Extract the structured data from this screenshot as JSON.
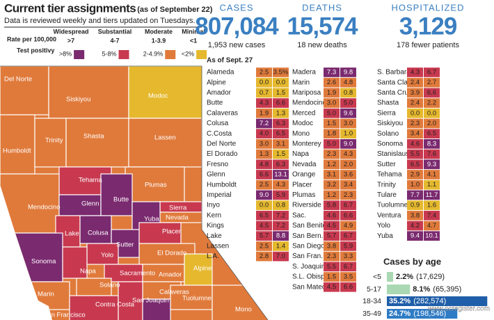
{
  "header": {
    "title": "Current tier assignments",
    "title_note": "(as of September 22)",
    "subtitle": "Data is reviewed weekly and tiers updated on Tuesdays.",
    "row_labels": [
      "Rate per 100,000",
      "Test positivy"
    ],
    "tiers": [
      {
        "name": "Widespread",
        "rate": ">7",
        "positivity": ">8%",
        "color": "#7a2a6f"
      },
      {
        "name": "Substantial",
        "rate": "4-7",
        "positivity": "5-8%",
        "color": "#c8394f"
      },
      {
        "name": "Moderate",
        "rate": "1-3.9",
        "positivity": "2-4.9%",
        "color": "#e07a3b"
      },
      {
        "name": "Minimal",
        "rate": "<1",
        "positivity": "<2%",
        "color": "#e5b82e"
      }
    ]
  },
  "stats": [
    {
      "label": "CASES",
      "value": "807,084",
      "note": "1,953 new cases"
    },
    {
      "label": "DEATHS",
      "value": "15,574",
      "note": "18 new deaths"
    },
    {
      "label": "HOSPITALIZED",
      "value": "3,129",
      "note": "178 fewer patients"
    }
  ],
  "table": {
    "title": "As of Sept. 27",
    "columns": [
      [
        [
          "Alameda",
          "2.5",
          "3.5%",
          "#e07a3b",
          "#e07a3b"
        ],
        [
          "Alpine",
          "0.0",
          "0.0",
          "#e5b82e",
          "#e5b82e"
        ],
        [
          "Amador",
          "0.7",
          "1.5",
          "#e5b82e",
          "#e5b82e"
        ],
        [
          "Butte",
          "4.3",
          "6.6",
          "#c8394f",
          "#c8394f"
        ],
        [
          "Calaveras",
          "1.9",
          "1.3",
          "#e07a3b",
          "#e5b82e"
        ],
        [
          "Colusa",
          "7.2",
          "6.3",
          "#7a2a6f",
          "#c8394f"
        ],
        [
          "C.Costa",
          "4.0",
          "6.5",
          "#c8394f",
          "#c8394f"
        ],
        [
          "Del Norte",
          "3.0",
          "3.1",
          "#e07a3b",
          "#e07a3b"
        ],
        [
          "El Dorado",
          "1.3",
          "1.5",
          "#e07a3b",
          "#e5b82e"
        ],
        [
          "Fresno",
          "4.8",
          "6.3",
          "#c8394f",
          "#c8394f"
        ],
        [
          "Glenn",
          "6.6",
          "13.1",
          "#c8394f",
          "#7a2a6f"
        ],
        [
          "Humboldt",
          "2.5",
          "4.3",
          "#e07a3b",
          "#e07a3b"
        ],
        [
          "Imperial",
          "9.0",
          "5.9",
          "#7a2a6f",
          "#c8394f"
        ],
        [
          "Inyo",
          "0.0",
          "0.8",
          "#e5b82e",
          "#e5b82e"
        ],
        [
          "Kern",
          "6.5",
          "7.2",
          "#c8394f",
          "#c8394f"
        ],
        [
          "Kings",
          "4.5",
          "7.2",
          "#c8394f",
          "#c8394f"
        ],
        [
          "Lake",
          "5.7",
          "8.8",
          "#c8394f",
          "#7a2a6f"
        ],
        [
          "Lassen",
          "2.5",
          "1.4",
          "#e07a3b",
          "#e5b82e"
        ],
        [
          "L.A.",
          "2.8",
          "7.0",
          "#e07a3b",
          "#c8394f"
        ]
      ],
      [
        [
          "Madera",
          "7.3",
          "9.8",
          "#7a2a6f",
          "#7a2a6f"
        ],
        [
          "Marin",
          "2.6",
          "4.8",
          "#e07a3b",
          "#e07a3b"
        ],
        [
          "Mariposa",
          "1.9",
          "0.8",
          "#e07a3b",
          "#e5b82e"
        ],
        [
          "Mendocino",
          "3.0",
          "5.0",
          "#e07a3b",
          "#c8394f"
        ],
        [
          "Merced",
          "5.0",
          "9.6",
          "#c8394f",
          "#7a2a6f"
        ],
        [
          "Modoc",
          "1.5",
          "3.0",
          "#e07a3b",
          "#e07a3b"
        ],
        [
          "Mono",
          "1.8",
          "1.0",
          "#e07a3b",
          "#e5b82e"
        ],
        [
          "Monterey",
          "5.0",
          "9.0",
          "#c8394f",
          "#7a2a6f"
        ],
        [
          "Napa",
          "2.3",
          "4.3",
          "#e07a3b",
          "#e07a3b"
        ],
        [
          "Nevada",
          "1.2",
          "2.0",
          "#e07a3b",
          "#e07a3b"
        ],
        [
          "Orange",
          "3.1",
          "3.6",
          "#e07a3b",
          "#e07a3b"
        ],
        [
          "Placer",
          "3.2",
          "3.4",
          "#e07a3b",
          "#e07a3b"
        ],
        [
          "Plumas",
          "1.2",
          "2.3",
          "#e07a3b",
          "#e07a3b"
        ],
        [
          "Riverside",
          "5.8",
          "6.7",
          "#c8394f",
          "#c8394f"
        ],
        [
          "Sac.",
          "4.6",
          "6.6",
          "#c8394f",
          "#c8394f"
        ],
        [
          "San Benito",
          "4.5",
          "4.9",
          "#c8394f",
          "#e07a3b"
        ],
        [
          "San Bern.",
          "5.7",
          "6.7",
          "#c8394f",
          "#c8394f"
        ],
        [
          "San Diego",
          "3.8",
          "5.9",
          "#e07a3b",
          "#c8394f"
        ],
        [
          "San Fran.",
          "2.3",
          "3.3",
          "#e07a3b",
          "#e07a3b"
        ],
        [
          "S. Joaquin",
          "5.5",
          "6.7",
          "#c8394f",
          "#c8394f"
        ],
        [
          "S.L. Obispo",
          "1.5",
          "3.5",
          "#e07a3b",
          "#e07a3b"
        ],
        [
          "San Mateo",
          "4.5",
          "6.6",
          "#c8394f",
          "#c8394f"
        ]
      ],
      [
        [
          "S. Barbara",
          "4.3",
          "6.7",
          "#c8394f",
          "#c8394f"
        ],
        [
          "Santa Clara",
          "2.4",
          "2.7",
          "#e07a3b",
          "#e07a3b"
        ],
        [
          "Santa Cruz",
          "3.9",
          "6.6",
          "#e07a3b",
          "#c8394f"
        ],
        [
          "Shasta",
          "2.4",
          "2.2",
          "#e07a3b",
          "#e07a3b"
        ],
        [
          "Sierra",
          "0.0",
          "0.0",
          "#e5b82e",
          "#e5b82e"
        ],
        [
          "Siskiyou",
          "2.3",
          "2.0",
          "#e07a3b",
          "#e07a3b"
        ],
        [
          "Solano",
          "3.4",
          "6.5",
          "#e07a3b",
          "#c8394f"
        ],
        [
          "Sonoma",
          "4.6",
          "8.3",
          "#c8394f",
          "#7a2a6f"
        ],
        [
          "Stanislaus",
          "5.5",
          "7.6",
          "#c8394f",
          "#c8394f"
        ],
        [
          "Sutter",
          "6.5",
          "9.3",
          "#c8394f",
          "#7a2a6f"
        ],
        [
          "Tehama",
          "2.9",
          "4.1",
          "#e07a3b",
          "#e07a3b"
        ],
        [
          "Trinity",
          "1.0",
          "1.1",
          "#e07a3b",
          "#e5b82e"
        ],
        [
          "Tulare",
          "7.7",
          "11.7",
          "#7a2a6f",
          "#7a2a6f"
        ],
        [
          "Tuolumne",
          "0.9",
          "1.6",
          "#e5b82e",
          "#e5b82e"
        ],
        [
          "Ventura",
          "3.8",
          "7.4",
          "#e07a3b",
          "#c8394f"
        ],
        [
          "Yolo",
          "4.2",
          "4.7",
          "#c8394f",
          "#e07a3b"
        ],
        [
          "Yuba",
          "9.4",
          "10.1",
          "#7a2a6f",
          "#7a2a6f"
        ]
      ]
    ]
  },
  "map": {
    "labels": [
      "Del Norte",
      "Siskiyou",
      "Modoc",
      "Humboldt",
      "Trinity",
      "Shasta",
      "Lassen",
      "Tehama",
      "Plumas",
      "Mendocino",
      "Glenn",
      "Butte",
      "Sierra",
      "Nevada",
      "Yuba",
      "Lake",
      "Colusa",
      "Sutter",
      "Placer",
      "Sonoma",
      "Yolo",
      "El Dorado",
      "Napa",
      "Sacramento",
      "Amador",
      "Alpine",
      "Solano",
      "Calaveras",
      "Marin",
      "Contra Costa",
      "San Joaquin",
      "Tuolumne",
      "San Francisco",
      "Mono"
    ]
  },
  "chart_data": {
    "type": "bar",
    "title": "Cases by age",
    "categories": [
      "<5",
      "5-17",
      "18-34",
      "35-49"
    ],
    "values": [
      2.2,
      8.1,
      35.2,
      24.7
    ],
    "value_labels": [
      "2.2%",
      "8.1%",
      "35.2%",
      "24.7%"
    ],
    "counts": [
      17629,
      65395,
      282574,
      198546
    ],
    "count_labels": [
      "(17,629)",
      "(65,395)",
      "(282,574)",
      "(198,546)"
    ],
    "colors": [
      "#a9d8b3",
      "#a9d8b3",
      "#1f5ea8",
      "#2f7cc5"
    ]
  },
  "credit": "www.ocregister.com"
}
